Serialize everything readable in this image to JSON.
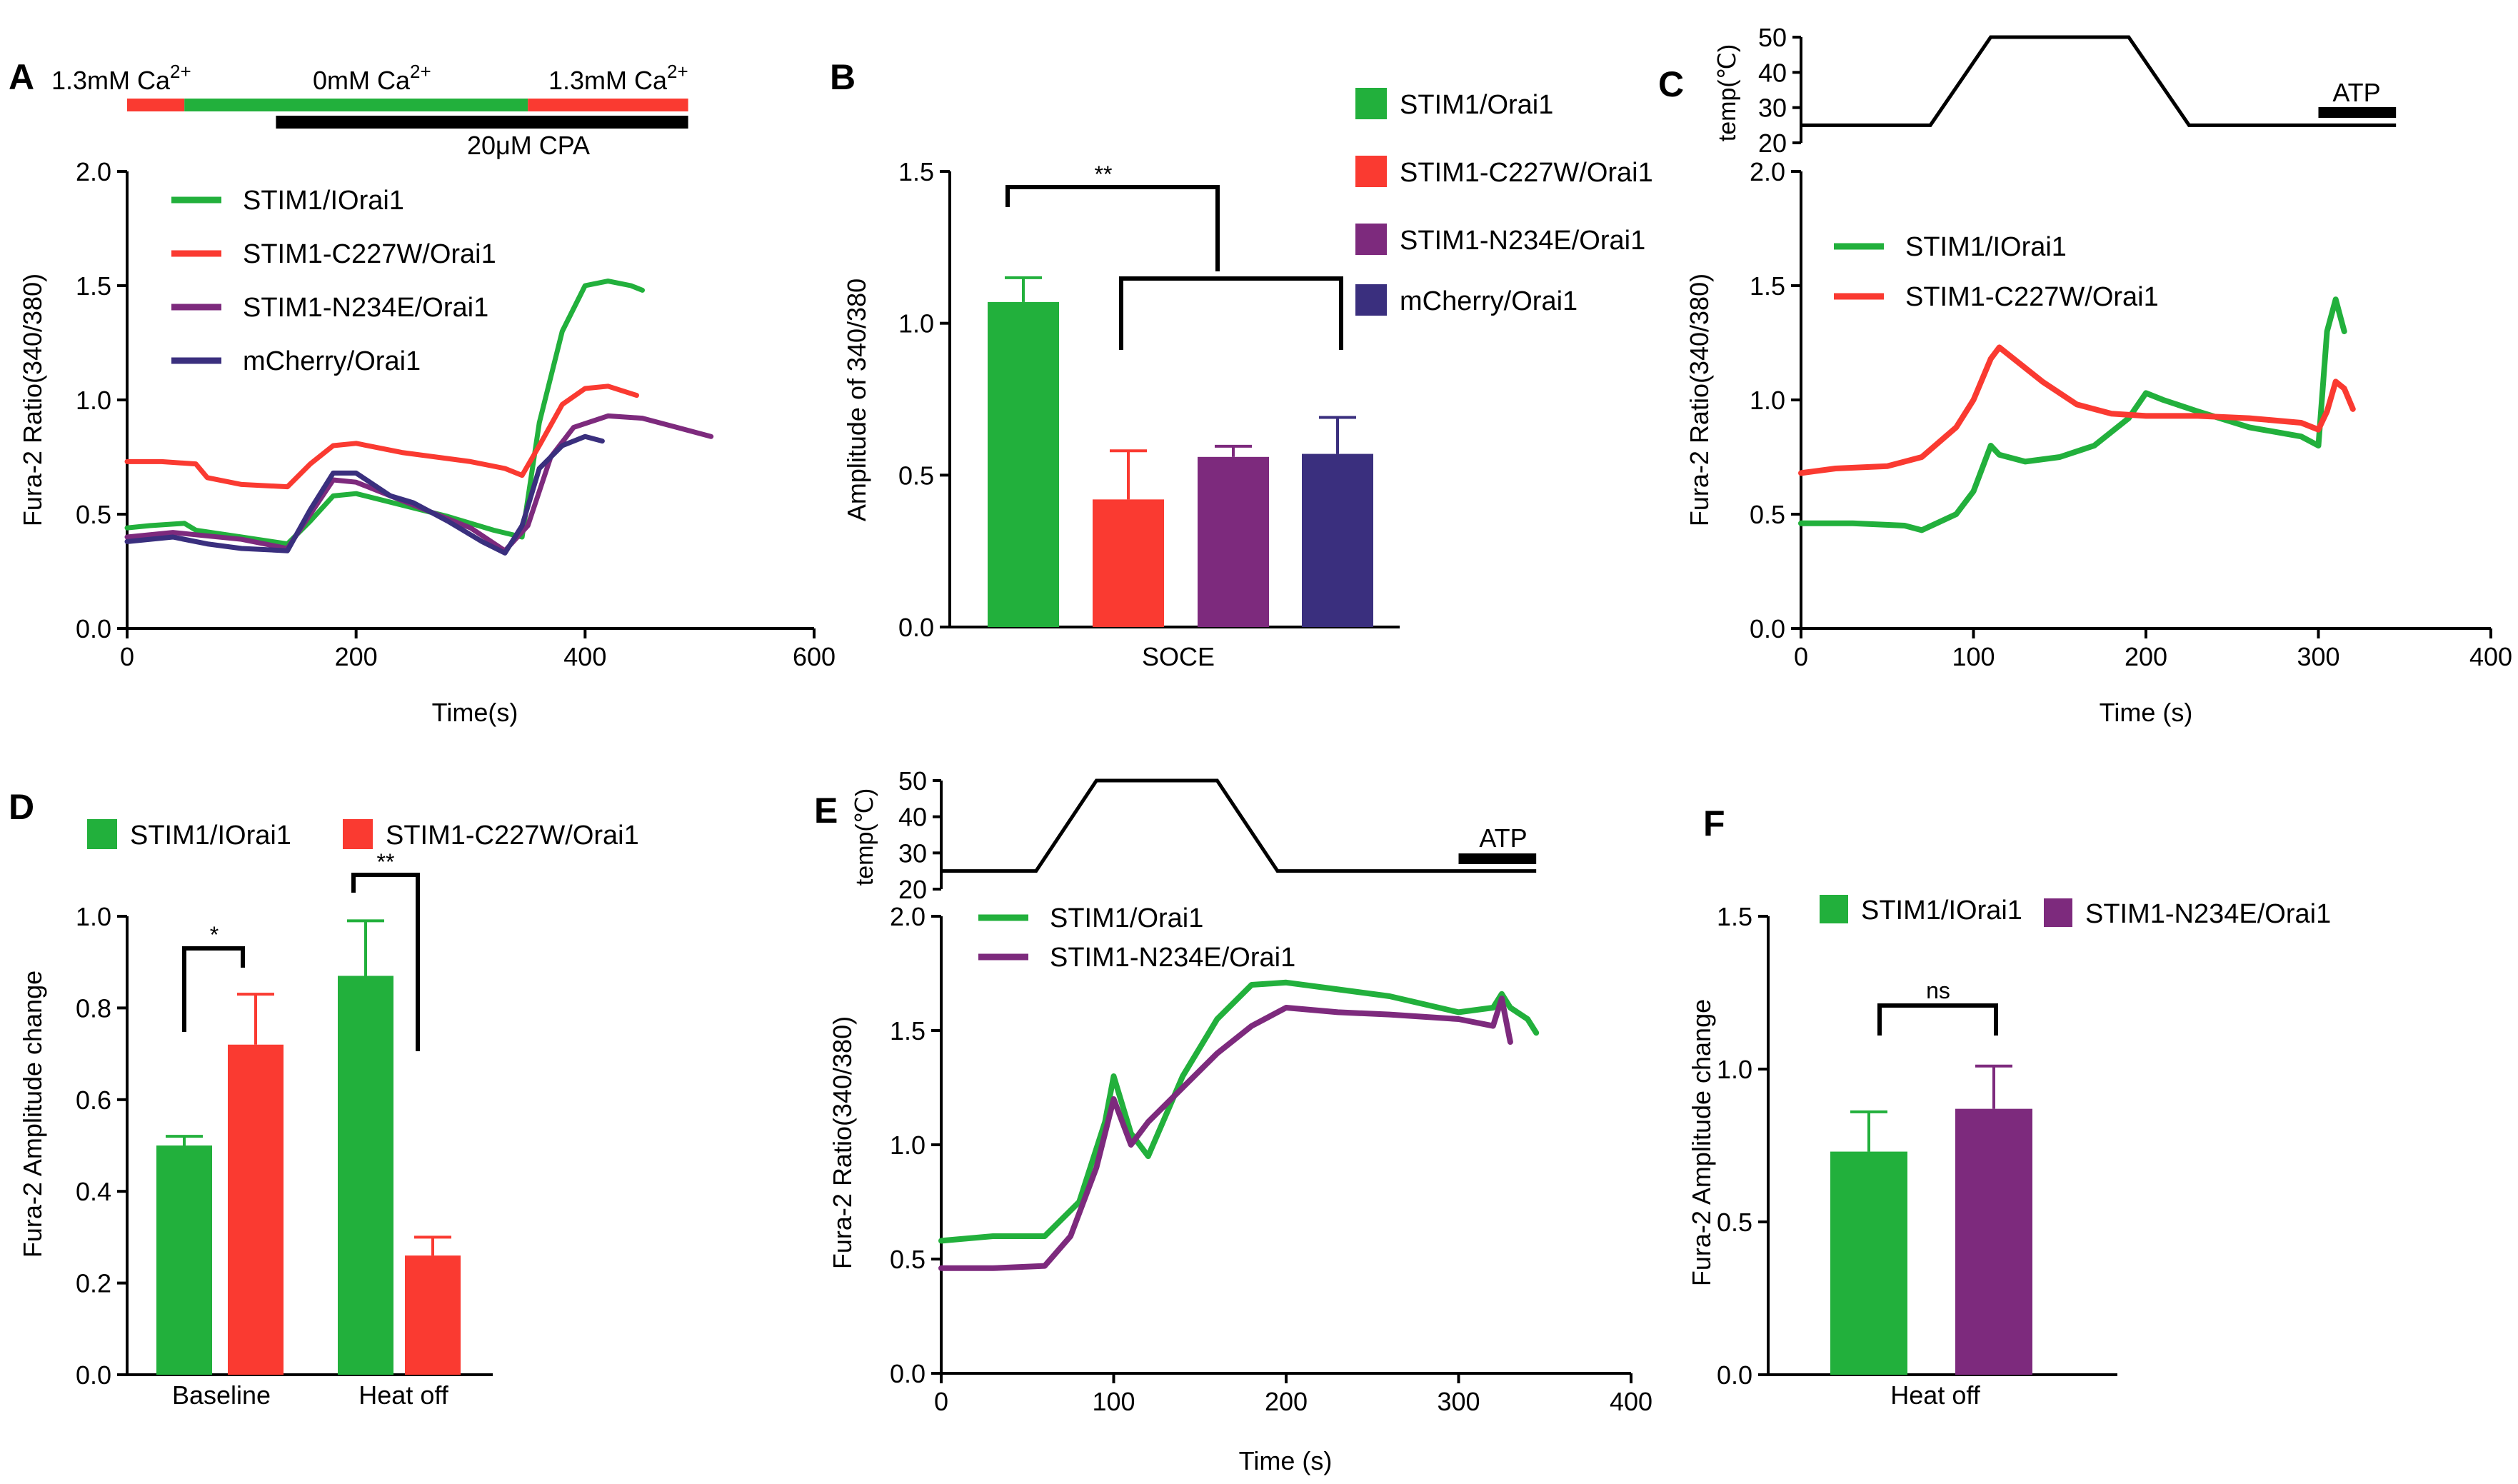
{
  "colors": {
    "green": "#22b03c",
    "red": "#fa3a31",
    "purple": "#7d2a7d",
    "navy": "#3a2f7e",
    "black": "#000000"
  },
  "chart_data": [
    {
      "id": "A",
      "type": "line",
      "panel_label": "A",
      "xlabel": "Time(s)",
      "ylabel": "Fura-2 Ratio(340/380)",
      "xlim": [
        0,
        600
      ],
      "ylim": [
        0,
        2.0
      ],
      "xticks": [
        0,
        200,
        400,
        600
      ],
      "yticks": [
        0.0,
        0.5,
        1.0,
        1.5,
        2.0
      ],
      "ytick_labels": [
        "0.0",
        "0.5",
        "1.0",
        "1.5",
        "2.0"
      ],
      "protocol": {
        "segments": [
          {
            "label": "1.3mM Ca",
            "sup": "2+",
            "start": 0,
            "end": 50,
            "color": "red"
          },
          {
            "label": "0mM Ca",
            "sup": "2+",
            "start": 50,
            "end": 350,
            "color": "green"
          },
          {
            "label": "1.3mM Ca",
            "sup": "2+",
            "start": 350,
            "end": 490,
            "color": "red"
          }
        ],
        "drug": {
          "label": "20μM CPA",
          "start": 130,
          "end": 490
        }
      },
      "series": [
        {
          "name": "STIM1/IOrai1",
          "color": "green",
          "x": [
            0,
            20,
            50,
            60,
            100,
            140,
            160,
            180,
            200,
            240,
            280,
            320,
            345,
            360,
            380,
            400,
            420,
            440,
            450
          ],
          "y": [
            0.44,
            0.45,
            0.46,
            0.43,
            0.4,
            0.37,
            0.47,
            0.58,
            0.59,
            0.54,
            0.49,
            0.43,
            0.4,
            0.9,
            1.3,
            1.5,
            1.52,
            1.5,
            1.48
          ]
        },
        {
          "name": "STIM1-C227W/Orai1",
          "color": "red",
          "x": [
            0,
            30,
            60,
            70,
            100,
            140,
            160,
            180,
            200,
            240,
            300,
            330,
            345,
            360,
            380,
            400,
            420,
            445
          ],
          "y": [
            0.73,
            0.73,
            0.72,
            0.66,
            0.63,
            0.62,
            0.72,
            0.8,
            0.81,
            0.77,
            0.73,
            0.7,
            0.67,
            0.8,
            0.98,
            1.05,
            1.06,
            1.02
          ]
        },
        {
          "name": "STIM1-N234E/Orai1",
          "color": "purple",
          "x": [
            0,
            40,
            60,
            100,
            140,
            160,
            180,
            200,
            230,
            260,
            300,
            330,
            350,
            370,
            390,
            420,
            450,
            480,
            510
          ],
          "y": [
            0.4,
            0.42,
            0.41,
            0.39,
            0.35,
            0.5,
            0.65,
            0.64,
            0.58,
            0.52,
            0.44,
            0.34,
            0.45,
            0.75,
            0.88,
            0.93,
            0.92,
            0.88,
            0.84
          ]
        },
        {
          "name": "mCherry/Orai1",
          "color": "navy",
          "x": [
            0,
            40,
            70,
            100,
            140,
            160,
            180,
            200,
            230,
            250,
            280,
            310,
            330,
            345,
            360,
            380,
            400,
            415
          ],
          "y": [
            0.38,
            0.4,
            0.37,
            0.35,
            0.34,
            0.52,
            0.68,
            0.68,
            0.58,
            0.55,
            0.47,
            0.38,
            0.33,
            0.45,
            0.7,
            0.8,
            0.84,
            0.82
          ]
        }
      ]
    },
    {
      "id": "B",
      "type": "bar",
      "panel_label": "B",
      "categories": [
        "SOCE"
      ],
      "ylabel": "Amplitude of 340/380",
      "ylim": [
        0,
        1.5
      ],
      "yticks": [
        0.0,
        0.5,
        1.0,
        1.5
      ],
      "ytick_labels": [
        "0.0",
        "0.5",
        "1.0",
        "1.5"
      ],
      "series": [
        {
          "name": "STIM1/Orai1",
          "color": "green",
          "values": [
            1.07
          ],
          "errors": [
            0.08
          ]
        },
        {
          "name": "STIM1-C227W/Orai1",
          "color": "red",
          "values": [
            0.42
          ],
          "errors": [
            0.16
          ]
        },
        {
          "name": "STIM1-N234E/Orai1",
          "color": "purple",
          "values": [
            0.56
          ],
          "errors": [
            0.035
          ]
        },
        {
          "name": "mCherry/Orai1",
          "color": "navy",
          "values": [
            0.57
          ],
          "errors": [
            0.12
          ]
        }
      ],
      "significance": [
        {
          "label": "**"
        }
      ]
    },
    {
      "id": "C",
      "type": "line",
      "panel_label": "C",
      "xlabel": "Time (s)",
      "ylabel": "Fura-2 Ratio(340/380)",
      "xlim": [
        0,
        400
      ],
      "ylim": [
        0,
        2.0
      ],
      "xticks": [
        0,
        100,
        200,
        300,
        400
      ],
      "yticks": [
        0.0,
        0.5,
        1.0,
        1.5,
        2.0
      ],
      "ytick_labels": [
        "0.0",
        "0.5",
        "1.0",
        "1.5",
        "2.0"
      ],
      "temperature": {
        "ylabel": "temp(℃)",
        "ylim": [
          20,
          50
        ],
        "yticks": [
          20,
          30,
          40,
          50
        ],
        "x": [
          0,
          75,
          110,
          190,
          225,
          345
        ],
        "y": [
          25,
          25,
          50,
          50,
          25,
          25
        ],
        "drug": {
          "label": "ATP",
          "start": 300,
          "end": 345
        }
      },
      "series": [
        {
          "name": "STIM1/IOrai1",
          "color": "green",
          "x": [
            0,
            30,
            60,
            70,
            90,
            100,
            110,
            115,
            130,
            150,
            170,
            190,
            200,
            210,
            230,
            260,
            290,
            300,
            305,
            310,
            315
          ],
          "y": [
            0.46,
            0.46,
            0.45,
            0.43,
            0.5,
            0.6,
            0.8,
            0.76,
            0.73,
            0.75,
            0.8,
            0.92,
            1.03,
            1.0,
            0.95,
            0.88,
            0.84,
            0.8,
            1.3,
            1.44,
            1.3
          ]
        },
        {
          "name": "STIM1-C227W/Orai1",
          "color": "red",
          "x": [
            0,
            20,
            50,
            70,
            90,
            100,
            110,
            115,
            120,
            140,
            160,
            180,
            200,
            230,
            260,
            290,
            300,
            305,
            310,
            315,
            320
          ],
          "y": [
            0.68,
            0.7,
            0.71,
            0.75,
            0.88,
            1.0,
            1.18,
            1.23,
            1.2,
            1.08,
            0.98,
            0.94,
            0.93,
            0.93,
            0.92,
            0.9,
            0.87,
            0.95,
            1.08,
            1.05,
            0.96
          ]
        }
      ]
    },
    {
      "id": "D",
      "type": "bar",
      "panel_label": "D",
      "categories": [
        "Baseline",
        "Heat off"
      ],
      "ylabel": "Fura-2 Amplitude change",
      "ylim": [
        0,
        1.0
      ],
      "yticks": [
        0.0,
        0.2,
        0.4,
        0.6,
        0.8,
        1.0
      ],
      "ytick_labels": [
        "0.0",
        "0.2",
        "0.4",
        "0.6",
        "0.8",
        "1.0"
      ],
      "series": [
        {
          "name": "STIM1/IOrai1",
          "color": "green",
          "values": [
            0.5,
            0.87
          ],
          "errors": [
            0.02,
            0.12
          ]
        },
        {
          "name": "STIM1-C227W/Orai1",
          "color": "red",
          "values": [
            0.72,
            0.26
          ],
          "errors": [
            0.11,
            0.04
          ]
        }
      ],
      "significance": [
        {
          "label": "*"
        },
        {
          "label": "**"
        }
      ]
    },
    {
      "id": "E",
      "type": "line",
      "panel_label": "E",
      "xlabel": "Time (s)",
      "ylabel": "Fura-2 Ratio(340/380)",
      "xlim": [
        0,
        400
      ],
      "ylim": [
        0,
        2.0
      ],
      "xticks": [
        0,
        100,
        200,
        300,
        400
      ],
      "yticks": [
        0.0,
        0.5,
        1.0,
        1.5,
        2.0
      ],
      "ytick_labels": [
        "0.0",
        "0.5",
        "1.0",
        "1.5",
        "2.0"
      ],
      "temperature": {
        "ylabel": "temp(℃)",
        "ylim": [
          20,
          50
        ],
        "yticks": [
          20,
          30,
          40,
          50
        ],
        "x": [
          0,
          55,
          90,
          160,
          195,
          345
        ],
        "y": [
          25,
          25,
          50,
          50,
          25,
          25
        ],
        "drug": {
          "label": "ATP",
          "start": 300,
          "end": 345
        }
      },
      "series": [
        {
          "name": "STIM1/Orai1",
          "color": "green",
          "x": [
            0,
            30,
            60,
            80,
            95,
            100,
            110,
            120,
            140,
            160,
            180,
            200,
            230,
            260,
            300,
            320,
            325,
            330,
            340,
            345
          ],
          "y": [
            0.58,
            0.6,
            0.6,
            0.75,
            1.1,
            1.3,
            1.05,
            0.95,
            1.3,
            1.55,
            1.7,
            1.71,
            1.68,
            1.65,
            1.58,
            1.6,
            1.66,
            1.6,
            1.55,
            1.49
          ]
        },
        {
          "name": "STIM1-N234E/Orai1",
          "color": "purple",
          "x": [
            0,
            30,
            60,
            75,
            90,
            100,
            110,
            120,
            140,
            160,
            180,
            200,
            230,
            260,
            300,
            320,
            325,
            330
          ],
          "y": [
            0.46,
            0.46,
            0.47,
            0.6,
            0.9,
            1.2,
            1.0,
            1.1,
            1.25,
            1.4,
            1.52,
            1.6,
            1.58,
            1.57,
            1.55,
            1.52,
            1.64,
            1.45
          ]
        }
      ]
    },
    {
      "id": "F",
      "type": "bar",
      "panel_label": "F",
      "categories": [
        "Heat off"
      ],
      "ylabel": "Fura-2 Amplitude change",
      "ylim": [
        0,
        1.5
      ],
      "yticks": [
        0.0,
        0.5,
        1.0,
        1.5
      ],
      "ytick_labels": [
        "0.0",
        "0.5",
        "1.0",
        "1.5"
      ],
      "series": [
        {
          "name": "STIM1/IOrai1",
          "color": "green",
          "values": [
            0.73
          ],
          "errors": [
            0.13
          ]
        },
        {
          "name": "STIM1-N234E/Orai1",
          "color": "purple",
          "values": [
            0.87
          ],
          "errors": [
            0.14
          ]
        }
      ],
      "significance": [
        {
          "label": "ns"
        }
      ]
    }
  ]
}
